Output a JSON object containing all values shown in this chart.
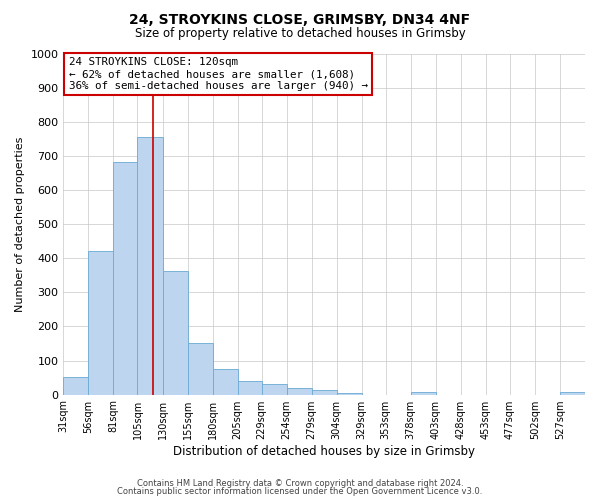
{
  "title": "24, STROYKINS CLOSE, GRIMSBY, DN34 4NF",
  "subtitle": "Size of property relative to detached houses in Grimsby",
  "xlabel": "Distribution of detached houses by size in Grimsby",
  "ylabel": "Number of detached properties",
  "bar_labels": [
    "31sqm",
    "56sqm",
    "81sqm",
    "105sqm",
    "130sqm",
    "155sqm",
    "180sqm",
    "205sqm",
    "229sqm",
    "254sqm",
    "279sqm",
    "304sqm",
    "329sqm",
    "353sqm",
    "378sqm",
    "403sqm",
    "428sqm",
    "453sqm",
    "477sqm",
    "502sqm",
    "527sqm"
  ],
  "bar_values": [
    52,
    422,
    683,
    757,
    362,
    152,
    75,
    40,
    32,
    18,
    12,
    5,
    0,
    0,
    8,
    0,
    0,
    0,
    0,
    0,
    8
  ],
  "bar_color": "#bdd5ee",
  "bar_edge_color": "#6aaad4",
  "ylim": [
    0,
    1000
  ],
  "yticks": [
    0,
    100,
    200,
    300,
    400,
    500,
    600,
    700,
    800,
    900,
    1000
  ],
  "property_line_x": 120,
  "annotation_title": "24 STROYKINS CLOSE: 120sqm",
  "annotation_line1": "← 62% of detached houses are smaller (1,608)",
  "annotation_line2": "36% of semi-detached houses are larger (940) →",
  "annotation_box_color": "#ffffff",
  "annotation_box_edge_color": "#cc0000",
  "vertical_line_color": "#cc0000",
  "footer1": "Contains HM Land Registry data © Crown copyright and database right 2024.",
  "footer2": "Contains public sector information licensed under the Open Government Licence v3.0.",
  "background_color": "#ffffff",
  "grid_color": "#c8c8c8",
  "bin_starts": [
    31,
    56,
    81,
    105,
    130,
    155,
    180,
    205,
    229,
    254,
    279,
    304,
    329,
    353,
    378,
    403,
    428,
    453,
    477,
    502,
    527
  ],
  "bin_widths": [
    25,
    25,
    24,
    25,
    25,
    25,
    25,
    24,
    25,
    25,
    25,
    25,
    24,
    25,
    25,
    25,
    25,
    24,
    25,
    25,
    25
  ]
}
